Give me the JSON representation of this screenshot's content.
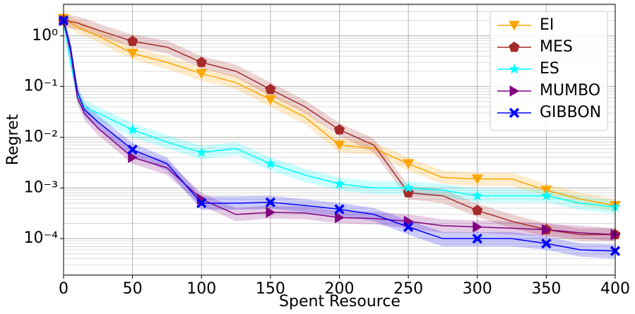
{
  "chart_data": {
    "type": "line",
    "xlabel": "Spent Resource",
    "ylabel": "Regret",
    "yscale": "log",
    "grid": true,
    "minor_grid": true,
    "legend": "upper right",
    "drawstyle": "lines",
    "xlim": [
      0,
      400
    ],
    "xticks": [
      0,
      50,
      100,
      150,
      200,
      250,
      300,
      350,
      400
    ],
    "ylim": [
      1.9e-05,
      4.2
    ],
    "yticks": [
      {
        "value": 1,
        "label": "10⁰"
      },
      {
        "value": 0.1,
        "label": "10⁻¹"
      },
      {
        "value": 0.01,
        "label": "10⁻²"
      },
      {
        "value": 0.001,
        "label": "10⁻³"
      },
      {
        "value": 0.0001,
        "label": "10⁻⁴"
      }
    ],
    "x": [
      0,
      5,
      10,
      15,
      25,
      50,
      75,
      100,
      125,
      150,
      175,
      200,
      225,
      250,
      275,
      300,
      325,
      350,
      375,
      400
    ],
    "series": [
      {
        "name": "EI",
        "color": "#ffa500",
        "marker": "triangle-down",
        "values": [
          2.2,
          1.8,
          1.5,
          1.3,
          1.0,
          0.45,
          0.3,
          0.18,
          0.12,
          0.055,
          0.025,
          0.007,
          0.006,
          0.003,
          0.0016,
          0.0015,
          0.0015,
          0.0009,
          0.0006,
          0.00045
        ],
        "lower": [
          1.7,
          1.4,
          1.1,
          1.0,
          0.75,
          0.34,
          0.22,
          0.13,
          0.09,
          0.04,
          0.018,
          0.005,
          0.0045,
          0.0022,
          0.0012,
          0.0011,
          0.0011,
          0.0007,
          0.00045,
          0.00034
        ],
        "upper": [
          2.9,
          2.4,
          2.0,
          1.8,
          1.35,
          0.6,
          0.4,
          0.24,
          0.16,
          0.075,
          0.034,
          0.0095,
          0.008,
          0.004,
          0.0022,
          0.002,
          0.002,
          0.0012,
          0.0008,
          0.0006
        ]
      },
      {
        "name": "MES",
        "color": "#a52a2a",
        "marker": "pentagon",
        "values": [
          2.0,
          1.9,
          1.8,
          1.6,
          1.3,
          0.78,
          0.6,
          0.3,
          0.2,
          0.088,
          0.04,
          0.014,
          0.007,
          0.0008,
          0.0007,
          0.00036,
          0.00022,
          0.00015,
          0.00012,
          0.00012
        ],
        "lower": [
          1.5,
          1.4,
          1.35,
          1.2,
          1.0,
          0.6,
          0.45,
          0.23,
          0.15,
          0.066,
          0.03,
          0.0105,
          0.005,
          0.0006,
          0.0005,
          0.00027,
          0.00016,
          0.00011,
          9e-05,
          9e-05
        ],
        "upper": [
          2.7,
          2.6,
          2.4,
          2.2,
          1.75,
          1.05,
          0.8,
          0.4,
          0.27,
          0.12,
          0.054,
          0.019,
          0.0095,
          0.0011,
          0.00095,
          0.00049,
          0.0003,
          0.0002,
          0.00016,
          0.00016
        ]
      },
      {
        "name": "ES",
        "color": "#00ffff",
        "marker": "star",
        "values": [
          2.0,
          0.3,
          0.07,
          0.04,
          0.03,
          0.014,
          0.008,
          0.005,
          0.006,
          0.003,
          0.0018,
          0.0012,
          0.001,
          0.001,
          0.0009,
          0.0007,
          0.0007,
          0.0007,
          0.0005,
          0.00042
        ],
        "lower": [
          1.5,
          0.22,
          0.05,
          0.03,
          0.022,
          0.01,
          0.006,
          0.0037,
          0.0045,
          0.0022,
          0.0013,
          0.0009,
          0.00075,
          0.00075,
          0.00067,
          0.00052,
          0.00052,
          0.00052,
          0.00037,
          0.00031
        ],
        "upper": [
          2.7,
          0.4,
          0.095,
          0.055,
          0.04,
          0.019,
          0.011,
          0.0068,
          0.008,
          0.004,
          0.0024,
          0.0016,
          0.00135,
          0.00135,
          0.0012,
          0.00095,
          0.00095,
          0.00095,
          0.00068,
          0.00057
        ]
      },
      {
        "name": "MUMBO",
        "color": "#800080",
        "marker": "triangle-right",
        "values": [
          2.0,
          0.5,
          0.06,
          0.03,
          0.015,
          0.004,
          0.0025,
          0.0006,
          0.0003,
          0.00033,
          0.00032,
          0.00026,
          0.00025,
          0.00022,
          0.00018,
          0.00017,
          0.00016,
          0.00015,
          0.00013,
          0.00012
        ],
        "lower": [
          1.5,
          0.37,
          0.045,
          0.022,
          0.011,
          0.003,
          0.0018,
          0.00045,
          0.00022,
          0.00025,
          0.00024,
          0.0002,
          0.00019,
          0.00016,
          0.00013,
          0.00013,
          0.00012,
          0.00011,
          0.0001,
          9e-05
        ],
        "upper": [
          2.7,
          0.68,
          0.08,
          0.04,
          0.02,
          0.0054,
          0.0034,
          0.0008,
          0.0004,
          0.00045,
          0.00043,
          0.00035,
          0.00034,
          0.0003,
          0.00024,
          0.00023,
          0.00022,
          0.0002,
          0.00018,
          0.00016
        ]
      },
      {
        "name": "GIBBON",
        "color": "#0000ff",
        "marker": "x",
        "values": [
          2.0,
          0.6,
          0.08,
          0.035,
          0.02,
          0.0057,
          0.003,
          0.0005,
          0.0005,
          0.00052,
          0.00045,
          0.00038,
          0.0003,
          0.00017,
          0.0001,
          0.0001,
          0.0001,
          8e-05,
          6e-05,
          5.7e-05
        ],
        "lower": [
          1.5,
          0.45,
          0.06,
          0.026,
          0.015,
          0.0043,
          0.0022,
          0.00037,
          0.00037,
          0.00039,
          0.00033,
          0.00028,
          0.00022,
          0.00012,
          7e-05,
          7e-05,
          7e-05,
          6e-05,
          4.4e-05,
          4e-05
        ],
        "upper": [
          2.7,
          0.8,
          0.11,
          0.047,
          0.027,
          0.0077,
          0.004,
          0.00068,
          0.00068,
          0.0007,
          0.0006,
          0.00051,
          0.0004,
          0.00023,
          0.000135,
          0.000135,
          0.000135,
          0.00011,
          8e-05,
          7.7e-05
        ]
      }
    ]
  }
}
